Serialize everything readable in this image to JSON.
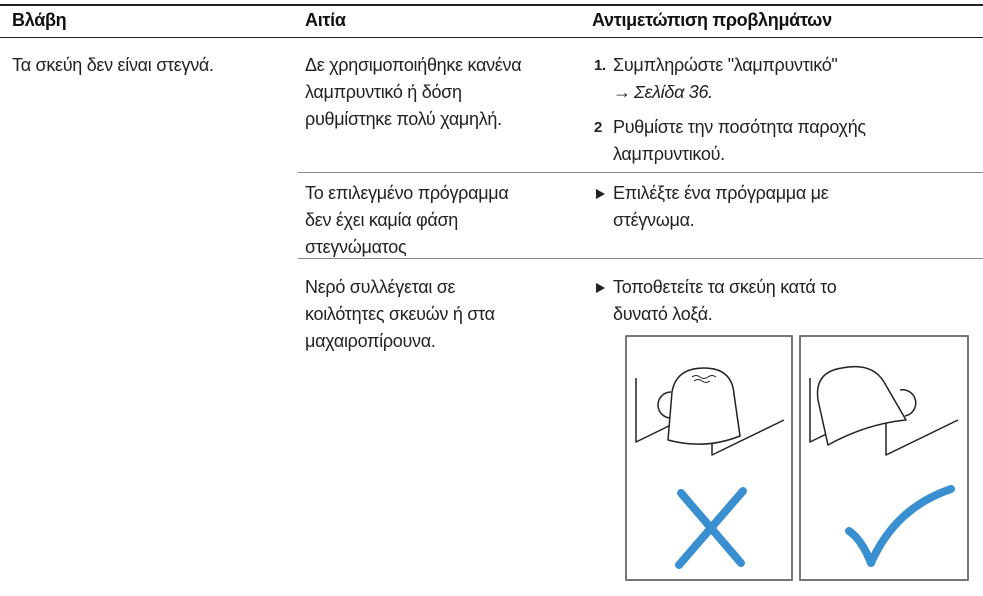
{
  "header": {
    "columns": [
      "Βλάβη",
      "Αιτία",
      "Αντιμετώπιση προβλημάτων"
    ]
  },
  "rows": [
    {
      "fault": "Τα σκεύη δεν είναι στεγνά.",
      "causes": [
        {
          "lines": [
            "Δε χρησιμοποιήθηκε κανένα",
            "λαμπρυντικό ή δόση",
            "ρυθμίστηκε πολύ χαμηλή."
          ],
          "steps": [
            {
              "number": "1.",
              "lines": [
                "Συμπληρώστε \"λαμπρυντικό\""
              ],
              "link": {
                "arrow": "→",
                "text": "Σελίδα 36."
              }
            },
            {
              "number": "2",
              "lines": [
                "Ρυθμίστε την ποσότητα παροχής",
                "λαμπρυντικού."
              ]
            }
          ]
        },
        {
          "lines": [
            "Το επιλεγμένο πρόγραμμα",
            "δεν έχει καμία φάση",
            "στεγνώματος"
          ],
          "remedy": [
            "Επιλέξτε ένα πρόγραμμα με",
            "στέγνωμα."
          ]
        },
        {
          "lines": [
            "Νερό συλλέγεται σε",
            "κοιλότητες σκευών ή στα",
            "μαχαιροπίρουνα."
          ],
          "remedy": [
            "Τοποθετείτε τα σκεύη κατά το",
            "δυνατό λοξά."
          ]
        }
      ]
    }
  ]
}
